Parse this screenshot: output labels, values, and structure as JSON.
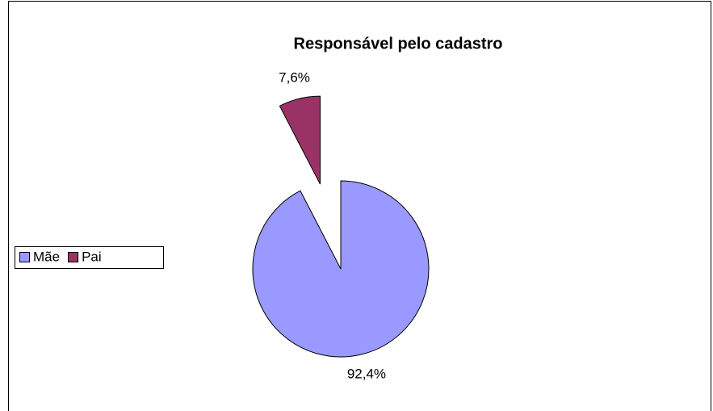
{
  "chart_data": {
    "type": "pie",
    "title": "Responsável pelo cadastro",
    "categories": [
      "Mãe",
      "Pai"
    ],
    "values": [
      92.4,
      7.6
    ],
    "value_labels": [
      "92,4%",
      "7,6%"
    ],
    "colors": [
      "#9999ff",
      "#993366"
    ],
    "exploded": [
      false,
      true
    ],
    "legend": "left"
  }
}
